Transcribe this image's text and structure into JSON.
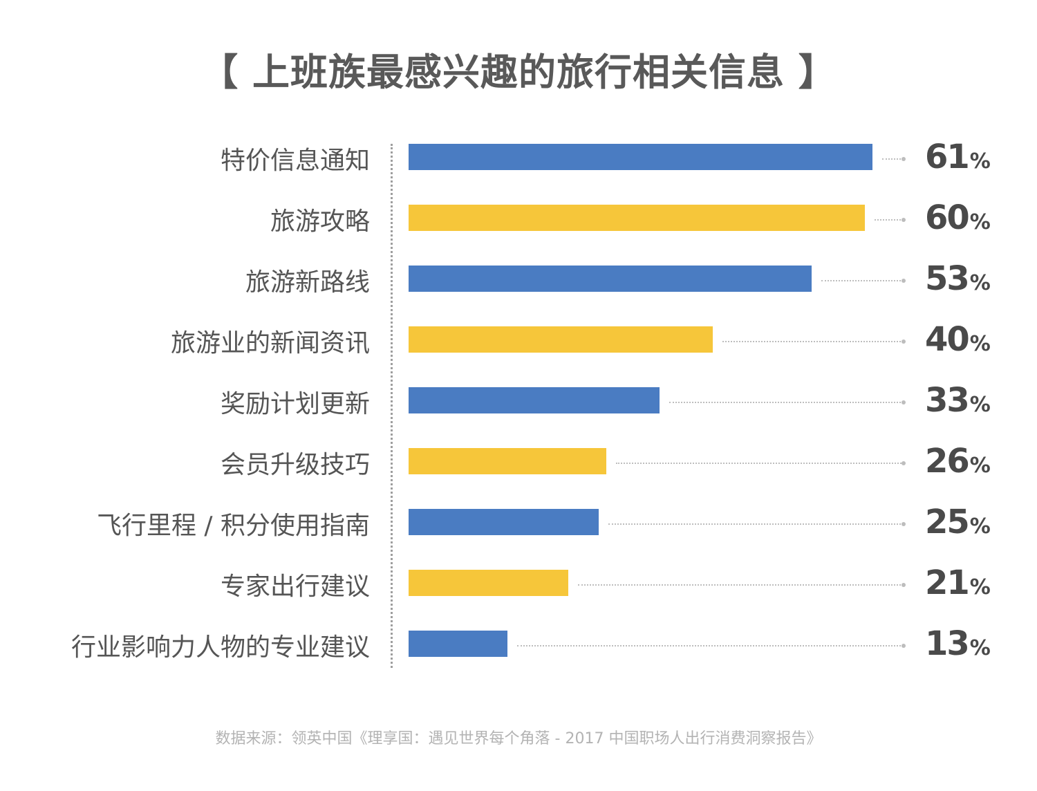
{
  "chart_data": {
    "type": "bar",
    "orientation": "horizontal",
    "title": "【 上班族最感兴趣的旅行相关信息 】",
    "categories": [
      "特价信息通知",
      "旅游攻略",
      "旅游新路线",
      "旅游业的新闻资讯",
      "奖励计划更新",
      "会员升级技巧",
      "飞行里程 / 积分使用指南",
      "专家出行建议",
      "行业影响力人物的专业建议"
    ],
    "values": [
      61,
      60,
      53,
      40,
      33,
      26,
      25,
      21,
      13
    ],
    "value_suffix": "%",
    "bar_colors": [
      "#4a7cc2",
      "#f6c63a"
    ],
    "legend": "none",
    "grid": false
  },
  "source": "数据来源：领英中国《理享国：遇见世界每个角落 - 2017 中国职场人出行消费洞察报告》"
}
